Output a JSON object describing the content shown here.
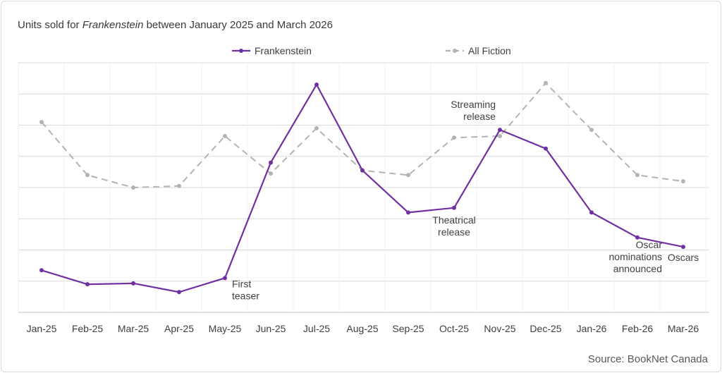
{
  "chart_data": {
    "type": "line",
    "title": {
      "prefix": "Units sold for ",
      "emphasis": "Frankenstein",
      "suffix": " between January 2025 and March 2026"
    },
    "categories": [
      "Jan-25",
      "Feb-25",
      "Mar-25",
      "Apr-25",
      "May-25",
      "Jun-25",
      "Jul-25",
      "Aug-25",
      "Sep-25",
      "Oct-25",
      "Nov-25",
      "Dec-25",
      "Jan-26",
      "Feb-26",
      "Mar-26"
    ],
    "y_range": [
      0,
      8
    ],
    "y_axis_labels_shown": false,
    "grid": true,
    "legend_position": "top",
    "series": [
      {
        "name": "Frankenstein",
        "color": "#7030a0",
        "style": "solid",
        "values": [
          1.35,
          0.9,
          0.93,
          0.65,
          1.1,
          4.8,
          7.3,
          4.55,
          3.2,
          3.35,
          5.85,
          5.25,
          3.2,
          2.4,
          2.1
        ]
      },
      {
        "name": "All Fiction",
        "color": "#b3b3b3",
        "style": "dashed",
        "values": [
          6.1,
          4.4,
          4.0,
          4.05,
          5.65,
          4.45,
          5.9,
          4.55,
          4.4,
          5.6,
          5.65,
          7.35,
          5.85,
          4.4,
          4.2
        ]
      }
    ],
    "annotations": [
      {
        "lines": [
          "First",
          "teaser"
        ],
        "category": "May-25",
        "series": "Frankenstein",
        "anchor": "start"
      },
      {
        "lines": [
          "Streaming",
          "release"
        ],
        "category": "Nov-25",
        "series": "Frankenstein",
        "anchor": "end"
      },
      {
        "lines": [
          "Theatrical",
          "release"
        ],
        "category": "Oct-25",
        "series": "Frankenstein",
        "anchor": "middle"
      },
      {
        "lines": [
          "Oscar",
          "nominations",
          "announced"
        ],
        "category": "Feb-26",
        "series": "Frankenstein",
        "anchor": "end"
      },
      {
        "lines": [
          "Oscars"
        ],
        "category": "Mar-26",
        "series": "Frankenstein",
        "anchor": "middle"
      }
    ],
    "source": "Source: BookNet Canada"
  }
}
